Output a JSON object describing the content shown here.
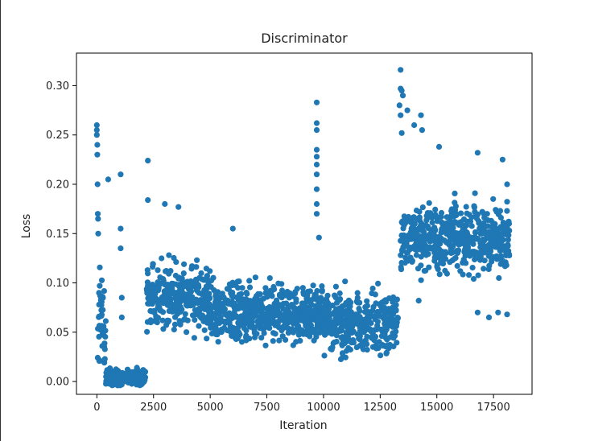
{
  "chart_data": {
    "type": "scatter",
    "title": "Discriminator",
    "xlabel": "Iteration",
    "ylabel": "Loss",
    "xlim": [
      -900,
      19200
    ],
    "ylim": [
      -0.013,
      0.333
    ],
    "xticks": [
      0,
      2500,
      5000,
      7500,
      10000,
      12500,
      15000,
      17500
    ],
    "xtick_labels": [
      "0",
      "2500",
      "5000",
      "7500",
      "10000",
      "12500",
      "15000",
      "17500"
    ],
    "yticks": [
      0.0,
      0.05,
      0.1,
      0.15,
      0.2,
      0.25,
      0.3
    ],
    "ytick_labels": [
      "0.00",
      "0.05",
      "0.10",
      "0.15",
      "0.20",
      "0.25",
      "0.30"
    ],
    "grid": false,
    "legend": "none",
    "marker_color": "#1f77b4",
    "series": [
      {
        "x_range": [
          0,
          18200
        ],
        "segments": [
          {
            "x": [
              0,
              400
            ],
            "y_center": 0.06,
            "y_spread": 0.06
          },
          {
            "x": [
              400,
              2150
            ],
            "y_center": 0.004,
            "y_spread": 0.01
          },
          {
            "x": [
              2200,
              5000
            ],
            "y_center": 0.085,
            "y_spread": 0.04
          },
          {
            "x": [
              5000,
              10000
            ],
            "y_center": 0.07,
            "y_spread": 0.035
          },
          {
            "x": [
              10000,
              13300
            ],
            "y_center": 0.06,
            "y_spread": 0.035
          },
          {
            "x": [
              13400,
              18200
            ],
            "y_center": 0.145,
            "y_spread": 0.04
          }
        ],
        "outliers": [
          {
            "x": 0,
            "y": 0.26
          },
          {
            "x": 0,
            "y": 0.255
          },
          {
            "x": 0,
            "y": 0.25
          },
          {
            "x": 20,
            "y": 0.24
          },
          {
            "x": 20,
            "y": 0.23
          },
          {
            "x": 30,
            "y": 0.2
          },
          {
            "x": 40,
            "y": 0.17
          },
          {
            "x": 50,
            "y": 0.165
          },
          {
            "x": 60,
            "y": 0.15
          },
          {
            "x": 500,
            "y": 0.205
          },
          {
            "x": 1050,
            "y": 0.21
          },
          {
            "x": 1050,
            "y": 0.155
          },
          {
            "x": 1050,
            "y": 0.135
          },
          {
            "x": 1100,
            "y": 0.085
          },
          {
            "x": 1100,
            "y": 0.065
          },
          {
            "x": 2250,
            "y": 0.224
          },
          {
            "x": 2250,
            "y": 0.184
          },
          {
            "x": 3600,
            "y": 0.177
          },
          {
            "x": 3000,
            "y": 0.18
          },
          {
            "x": 6000,
            "y": 0.155
          },
          {
            "x": 9700,
            "y": 0.283
          },
          {
            "x": 9700,
            "y": 0.262
          },
          {
            "x": 9700,
            "y": 0.255
          },
          {
            "x": 9700,
            "y": 0.235
          },
          {
            "x": 9700,
            "y": 0.228
          },
          {
            "x": 9700,
            "y": 0.22
          },
          {
            "x": 9700,
            "y": 0.21
          },
          {
            "x": 9700,
            "y": 0.195
          },
          {
            "x": 9700,
            "y": 0.18
          },
          {
            "x": 9700,
            "y": 0.17
          },
          {
            "x": 9800,
            "y": 0.146
          },
          {
            "x": 13400,
            "y": 0.316
          },
          {
            "x": 13400,
            "y": 0.297
          },
          {
            "x": 13450,
            "y": 0.295
          },
          {
            "x": 13500,
            "y": 0.29
          },
          {
            "x": 13350,
            "y": 0.28
          },
          {
            "x": 13400,
            "y": 0.27
          },
          {
            "x": 13700,
            "y": 0.275
          },
          {
            "x": 14300,
            "y": 0.27
          },
          {
            "x": 14000,
            "y": 0.26
          },
          {
            "x": 13450,
            "y": 0.252
          },
          {
            "x": 14350,
            "y": 0.255
          },
          {
            "x": 15100,
            "y": 0.238
          },
          {
            "x": 16800,
            "y": 0.232
          },
          {
            "x": 17900,
            "y": 0.225
          },
          {
            "x": 18100,
            "y": 0.2
          },
          {
            "x": 17700,
            "y": 0.07
          },
          {
            "x": 17300,
            "y": 0.065
          },
          {
            "x": 18100,
            "y": 0.068
          },
          {
            "x": 14200,
            "y": 0.082
          },
          {
            "x": 16800,
            "y": 0.07
          },
          {
            "x": 1400,
            "y": 0.005
          },
          {
            "x": 1800,
            "y": 0.005
          }
        ]
      }
    ]
  }
}
